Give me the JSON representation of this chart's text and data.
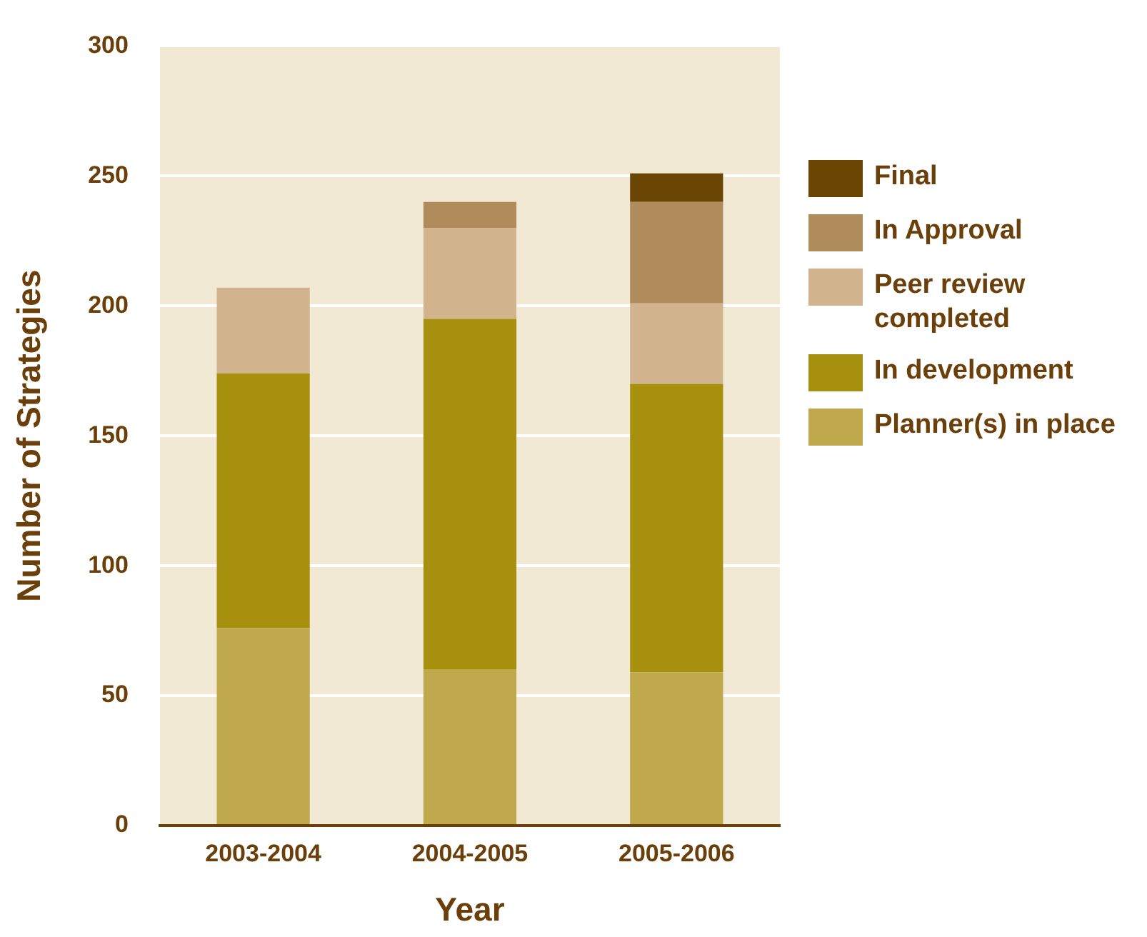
{
  "chart_data": {
    "type": "bar",
    "stacked": true,
    "xlabel": "Year",
    "ylabel": "Number of Strategies",
    "categories": [
      "2003-2004",
      "2004-2005",
      "2005-2006"
    ],
    "series": [
      {
        "name": "Planner(s) in place",
        "color": "#bfa94c",
        "values": [
          76,
          60,
          59
        ]
      },
      {
        "name": "In development",
        "color": "#a8900f",
        "values": [
          98,
          135,
          111
        ]
      },
      {
        "name": "Peer review completed",
        "color": "#d1b38e",
        "values": [
          33,
          35,
          31
        ]
      },
      {
        "name": "In Approval",
        "color": "#b08c5c",
        "values": [
          null,
          10,
          39
        ]
      },
      {
        "name": "Final",
        "color": "#6b4503",
        "values": [
          null,
          null,
          11
        ]
      }
    ],
    "ylim": [
      0,
      300
    ],
    "yticks": [
      0,
      50,
      100,
      150,
      200,
      250,
      300
    ],
    "grid": "y",
    "legend": "right"
  }
}
